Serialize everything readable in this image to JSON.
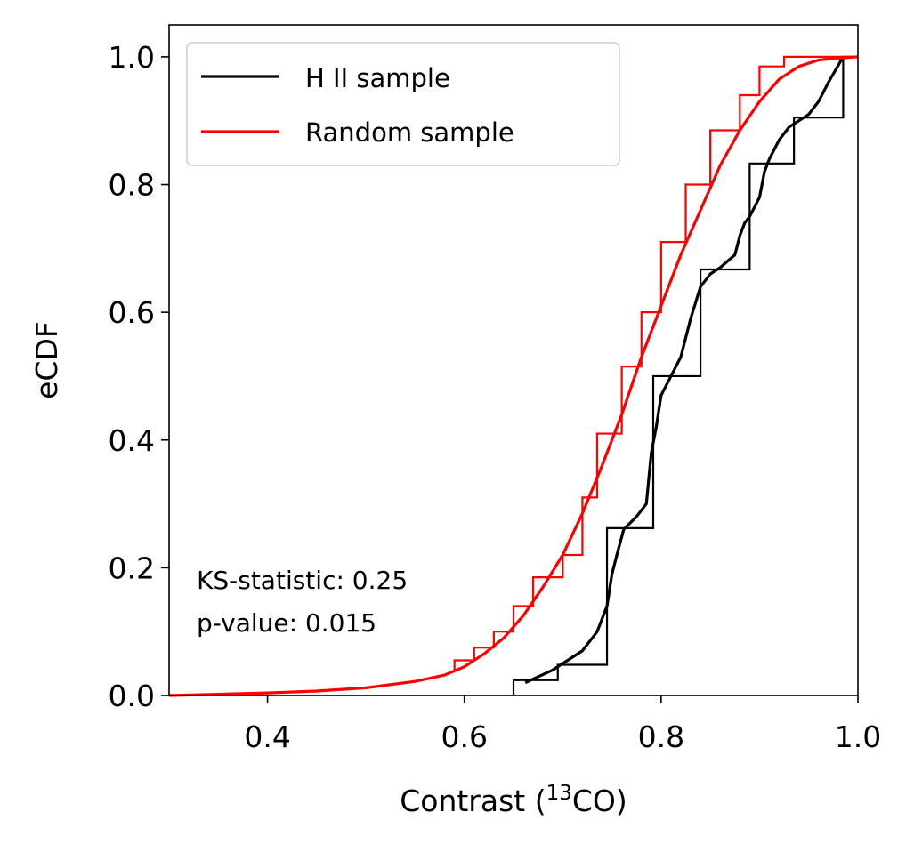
{
  "chart_data": {
    "type": "line",
    "xlabel_prefix": "Contrast (",
    "xlabel_sup": "13",
    "xlabel_suffix": "CO)",
    "ylabel": "eCDF",
    "xlim": [
      0.3,
      1.0
    ],
    "ylim": [
      0.0,
      1.05
    ],
    "xticks": [
      0.4,
      0.6,
      0.8,
      1.0
    ],
    "xtick_labels": [
      "0.4",
      "0.6",
      "0.8",
      "1.0"
    ],
    "yticks": [
      0.0,
      0.2,
      0.4,
      0.6,
      0.8,
      1.0
    ],
    "ytick_labels": [
      "0.0",
      "0.2",
      "0.4",
      "0.6",
      "0.8",
      "1.0"
    ],
    "legend_position": "top-left",
    "annotation": [
      "KS-statistic: 0.25",
      "p-value: 0.015"
    ],
    "series": [
      {
        "name": "H II sample",
        "color": "#000000",
        "step_x": [
          0.65,
          0.695,
          0.745,
          0.792,
          0.84,
          0.89,
          0.935,
          0.985
        ],
        "step_y": [
          0.0,
          0.024,
          0.048,
          0.262,
          0.5,
          0.667,
          0.833,
          0.905,
          1.0
        ],
        "smooth_x": [
          0.662,
          0.69,
          0.72,
          0.735,
          0.745,
          0.75,
          0.755,
          0.762,
          0.775,
          0.785,
          0.79,
          0.795,
          0.8,
          0.81,
          0.82,
          0.83,
          0.84,
          0.85,
          0.86,
          0.875,
          0.88,
          0.885,
          0.89,
          0.9,
          0.905,
          0.91,
          0.92,
          0.93,
          0.95,
          0.96,
          0.97,
          0.985
        ],
        "smooth_y": [
          0.02,
          0.04,
          0.07,
          0.1,
          0.14,
          0.19,
          0.22,
          0.26,
          0.28,
          0.3,
          0.38,
          0.42,
          0.47,
          0.5,
          0.53,
          0.59,
          0.64,
          0.66,
          0.67,
          0.69,
          0.72,
          0.74,
          0.75,
          0.78,
          0.82,
          0.84,
          0.87,
          0.89,
          0.91,
          0.93,
          0.96,
          1.0
        ]
      },
      {
        "name": "Random sample",
        "color": "#ff0000",
        "step_x": [
          0.59,
          0.61,
          0.63,
          0.65,
          0.67,
          0.7,
          0.72,
          0.735,
          0.76,
          0.78,
          0.8,
          0.825,
          0.85,
          0.88,
          0.9,
          0.925,
          0.955
        ],
        "step_y": [
          0.04,
          0.055,
          0.075,
          0.1,
          0.14,
          0.185,
          0.22,
          0.31,
          0.41,
          0.515,
          0.6,
          0.71,
          0.8,
          0.885,
          0.94,
          0.985,
          1.0,
          1.0
        ],
        "smooth_x": [
          0.3,
          0.35,
          0.4,
          0.45,
          0.5,
          0.55,
          0.58,
          0.6,
          0.62,
          0.64,
          0.66,
          0.68,
          0.7,
          0.72,
          0.74,
          0.76,
          0.78,
          0.8,
          0.82,
          0.84,
          0.86,
          0.88,
          0.9,
          0.92,
          0.94,
          0.96,
          0.98,
          1.0
        ],
        "smooth_y": [
          0.0,
          0.002,
          0.004,
          0.007,
          0.012,
          0.022,
          0.032,
          0.045,
          0.065,
          0.09,
          0.125,
          0.17,
          0.22,
          0.285,
          0.36,
          0.44,
          0.53,
          0.61,
          0.69,
          0.76,
          0.83,
          0.885,
          0.93,
          0.965,
          0.985,
          0.995,
          0.998,
          1.0
        ]
      }
    ]
  }
}
